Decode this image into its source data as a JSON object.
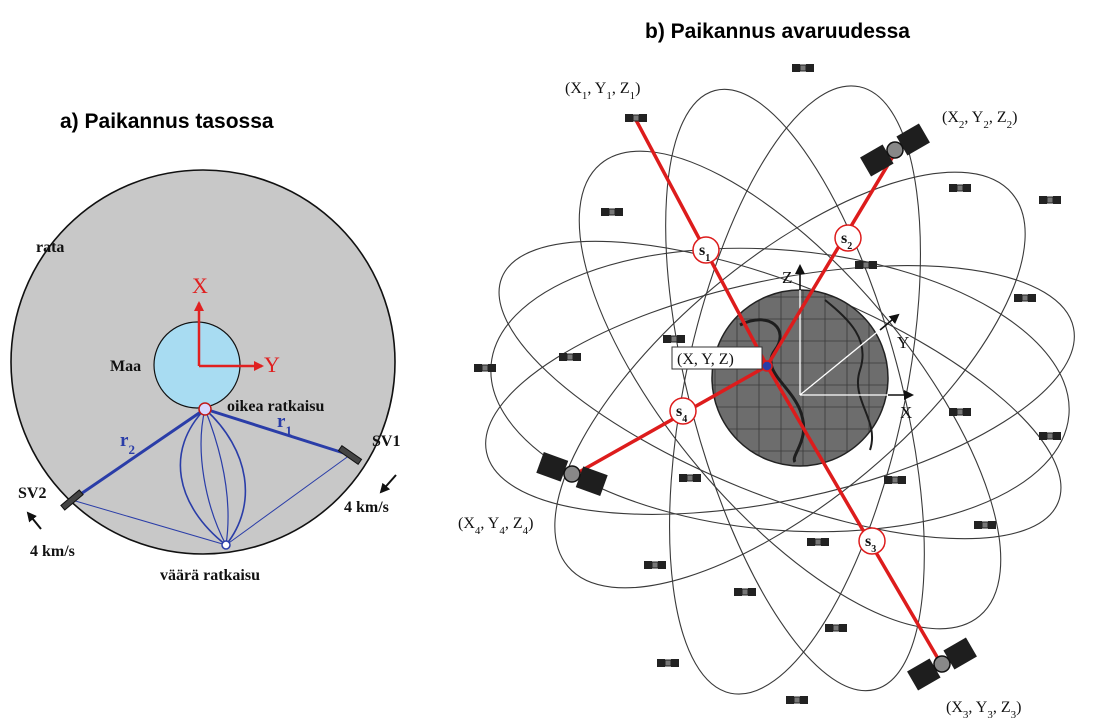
{
  "panel_a": {
    "title": "a) Paikannus tasossa",
    "orbit_label": "rata",
    "earth_label": "Maa",
    "axis_x": "X",
    "axis_y": "Y",
    "correct_solution": "oikea ratkaisu",
    "wrong_solution": "väärä ratkaisu",
    "r1": "r",
    "r1_sub": "1",
    "r2": "r",
    "r2_sub": "2",
    "sv1": "SV1",
    "sv2": "SV2",
    "sv1_speed": "4 km/s",
    "sv2_speed": "4 km/s"
  },
  "panel_b": {
    "title": "b) Paikannus avaruudessa",
    "receiver": "(X, Y, Z)",
    "axis_x": "X",
    "axis_y": "Y",
    "axis_z": "Z",
    "ranges": [
      {
        "base": "s",
        "sub": "1"
      },
      {
        "base": "s",
        "sub": "2"
      },
      {
        "base": "s",
        "sub": "3"
      },
      {
        "base": "s",
        "sub": "4"
      }
    ],
    "satellites": [
      {
        "x": "X",
        "xs": "1",
        "y": "Y",
        "ys": "1",
        "z": "Z",
        "zs": "1"
      },
      {
        "x": "X",
        "xs": "2",
        "y": "Y",
        "ys": "2",
        "z": "Z",
        "zs": "2"
      },
      {
        "x": "X",
        "xs": "3",
        "y": "Y",
        "ys": "3",
        "z": "Z",
        "zs": "3"
      },
      {
        "x": "X",
        "xs": "4",
        "y": "Y",
        "ys": "4",
        "z": "Z",
        "zs": "4"
      }
    ]
  },
  "colors": {
    "orbit_fill": "#c8c8c8",
    "earth_fill": "#a8dcf2",
    "axis_red": "#e02020",
    "range_blue": "#2a3da8",
    "range_red": "#dd1c1c"
  }
}
